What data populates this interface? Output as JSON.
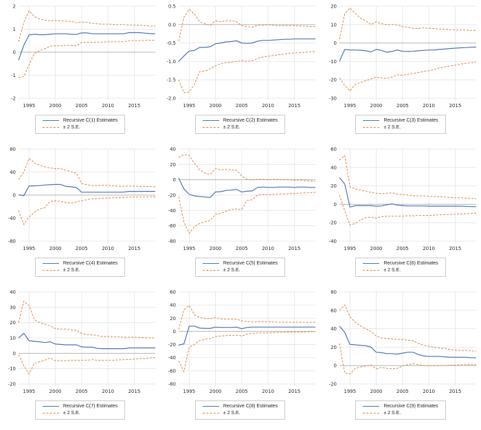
{
  "colors": {
    "estimate": "#4a72b8",
    "band": "#e4803c",
    "grid": "#e3e3e3",
    "zero_line": "#b5b5b5",
    "tick_text": "#2b2b2b",
    "legend_border": "#c9c9c9",
    "background": "#ffffff"
  },
  "x_axis": {
    "min": 1993,
    "max": 2019,
    "ticks": [
      "1995",
      "2000",
      "2005",
      "2010",
      "2015"
    ],
    "years": [
      1993,
      1994,
      1995,
      1996,
      1997,
      1998,
      1999,
      2000,
      2001,
      2002,
      2003,
      2004,
      2005,
      2006,
      2007,
      2008,
      2009,
      2010,
      2011,
      2012,
      2013,
      2014,
      2015,
      2016,
      2017,
      2018,
      2019
    ]
  },
  "chart_data": [
    {
      "type": "line",
      "legend_estimate": "Recursive C(1) Estimates",
      "legend_band": "± 2 S.E.",
      "ylim": [
        -2,
        2
      ],
      "yticks": [
        2,
        1,
        0,
        -1,
        -2
      ],
      "ytick_labels": [
        "2",
        "1",
        "0",
        "-1",
        "-2"
      ],
      "series": [
        {
          "name": "estimate",
          "values": [
            -0.35,
            0.3,
            0.75,
            0.78,
            0.76,
            0.76,
            0.78,
            0.8,
            0.8,
            0.8,
            0.78,
            0.77,
            0.84,
            0.84,
            0.8,
            0.8,
            0.8,
            0.8,
            0.8,
            0.8,
            0.8,
            0.85,
            0.85,
            0.85,
            0.83,
            0.81,
            0.8
          ]
        },
        {
          "name": "upper_2se",
          "values": [
            0.45,
            1.3,
            1.8,
            1.55,
            1.45,
            1.4,
            1.36,
            1.38,
            1.36,
            1.35,
            1.33,
            1.28,
            1.31,
            1.3,
            1.25,
            1.23,
            1.22,
            1.22,
            1.21,
            1.2,
            1.2,
            1.19,
            1.18,
            1.18,
            1.16,
            1.14,
            1.13
          ]
        },
        {
          "name": "lower_2se",
          "values": [
            -1.1,
            -1.05,
            -0.55,
            -0.05,
            0.06,
            0.15,
            0.26,
            0.28,
            0.28,
            0.3,
            0.29,
            0.28,
            0.42,
            0.43,
            0.43,
            0.44,
            0.44,
            0.45,
            0.45,
            0.45,
            0.46,
            0.5,
            0.5,
            0.51,
            0.51,
            0.52,
            0.52
          ]
        }
      ]
    },
    {
      "type": "line",
      "legend_estimate": "Recursive C(2) Estimates",
      "legend_band": "± 2 S.E.",
      "ylim": [
        -2.0,
        0.5
      ],
      "yticks": [
        0.5,
        0.0,
        -0.5,
        -1.0,
        -1.5,
        -2.0
      ],
      "ytick_labels": [
        "0.5",
        "0.0",
        "-0.5",
        "-1.0",
        "-1.5",
        "-2.0"
      ],
      "series": [
        {
          "name": "estimate",
          "values": [
            -1.0,
            -0.85,
            -0.72,
            -0.7,
            -0.62,
            -0.62,
            -0.6,
            -0.52,
            -0.5,
            -0.47,
            -0.46,
            -0.44,
            -0.5,
            -0.51,
            -0.5,
            -0.45,
            -0.43,
            -0.43,
            -0.42,
            -0.41,
            -0.4,
            -0.4,
            -0.39,
            -0.39,
            -0.39,
            -0.39,
            -0.39
          ]
        },
        {
          "name": "upper_2se",
          "values": [
            -0.45,
            0.2,
            0.42,
            0.28,
            0.08,
            0.02,
            -0.02,
            0.1,
            0.08,
            0.1,
            0.1,
            0.08,
            -0.03,
            -0.05,
            -0.07,
            -0.02,
            -0.02,
            0.0,
            -0.02,
            -0.03,
            -0.03,
            -0.03,
            -0.03,
            -0.04,
            -0.04,
            -0.05,
            -0.05
          ]
        },
        {
          "name": "lower_2se",
          "values": [
            -1.5,
            -1.85,
            -1.83,
            -1.62,
            -1.28,
            -1.26,
            -1.2,
            -1.12,
            -1.06,
            -1.03,
            -1.02,
            -1.0,
            -0.98,
            -1.0,
            -0.98,
            -0.92,
            -0.88,
            -0.86,
            -0.84,
            -0.82,
            -0.8,
            -0.78,
            -0.77,
            -0.76,
            -0.75,
            -0.74,
            -0.74
          ]
        }
      ]
    },
    {
      "type": "line",
      "legend_estimate": "Recursive C(3) Estimates",
      "legend_band": "± 2 S.E.",
      "ylim": [
        -30,
        20
      ],
      "yticks": [
        20,
        10,
        0,
        -10,
        -20,
        -30
      ],
      "ytick_labels": [
        "20",
        "10",
        "0",
        "-10",
        "-20",
        "-30"
      ],
      "series": [
        {
          "name": "estimate",
          "values": [
            -10.0,
            -3.5,
            -3.8,
            -3.8,
            -3.9,
            -4.2,
            -4.8,
            -3.5,
            -4.0,
            -5.0,
            -4.6,
            -3.8,
            -4.5,
            -4.6,
            -4.5,
            -4.2,
            -4.0,
            -3.8,
            -3.8,
            -3.5,
            -3.3,
            -3.0,
            -2.8,
            -2.6,
            -2.5,
            -2.3,
            -2.2
          ]
        },
        {
          "name": "upper_2se",
          "values": [
            2.0,
            16.0,
            19.0,
            16.0,
            13.5,
            12.0,
            10.0,
            11.5,
            10.5,
            10.0,
            10.0,
            9.8,
            9.0,
            8.6,
            8.0,
            7.8,
            8.2,
            8.0,
            7.8,
            7.6,
            7.5,
            7.3,
            7.2,
            7.0,
            7.0,
            6.8,
            6.8
          ]
        },
        {
          "name": "lower_2se",
          "values": [
            -19.0,
            -23.0,
            -26.0,
            -22.5,
            -21.5,
            -20.5,
            -19.5,
            -18.5,
            -19.0,
            -19.2,
            -18.5,
            -17.3,
            -17.5,
            -17.0,
            -16.5,
            -16.0,
            -15.5,
            -15.0,
            -14.5,
            -13.5,
            -13.0,
            -12.5,
            -12.0,
            -11.5,
            -11.0,
            -10.8,
            -10.5
          ]
        }
      ]
    },
    {
      "type": "line",
      "legend_estimate": "Recursive C(4) Estimates",
      "legend_band": "± 2 S.E.",
      "ylim": [
        -80,
        80
      ],
      "yticks": [
        80,
        40,
        0,
        -40,
        -80
      ],
      "ytick_labels": [
        "80",
        "40",
        "0",
        "-40",
        "-80"
      ],
      "series": [
        {
          "name": "estimate",
          "values": [
            0.5,
            -1.0,
            16.0,
            16.0,
            16.5,
            17.5,
            18.0,
            18.5,
            18.5,
            15.0,
            14.5,
            13.0,
            5.0,
            5.0,
            5.0,
            5.0,
            5.0,
            5.0,
            5.0,
            5.0,
            5.2,
            6.5,
            6.5,
            6.5,
            6.5,
            6.5,
            6.5
          ]
        },
        {
          "name": "upper_2se",
          "values": [
            27.0,
            40.0,
            64.0,
            56.0,
            52.0,
            49.0,
            47.0,
            46.0,
            46.0,
            43.0,
            41.0,
            38.0,
            20.0,
            18.0,
            16.5,
            16.5,
            17.0,
            17.0,
            16.0,
            15.5,
            15.5,
            15.5,
            15.5,
            15.0,
            15.0,
            14.8,
            14.5
          ]
        },
        {
          "name": "lower_2se",
          "values": [
            -27.0,
            -51.0,
            -38.0,
            -30.0,
            -24.0,
            -22.0,
            -11.0,
            -10.0,
            -11.0,
            -13.0,
            -14.0,
            -12.0,
            -10.0,
            -8.0,
            -6.5,
            -6.0,
            -5.5,
            -5.0,
            -4.5,
            -4.5,
            -4.0,
            -3.5,
            -3.5,
            -3.5,
            -3.5,
            -3.2,
            -3.0
          ]
        }
      ]
    },
    {
      "type": "line",
      "legend_estimate": "Recursive C(5) Estimates",
      "legend_band": "± 2 S.E.",
      "ylim": [
        -80,
        40
      ],
      "yticks": [
        40,
        20,
        0,
        -20,
        -40,
        -60,
        -80
      ],
      "ytick_labels": [
        "40",
        "20",
        "0",
        "-20",
        "-40",
        "-60",
        "-80"
      ],
      "series": [
        {
          "name": "estimate",
          "values": [
            2.0,
            -12.0,
            -19.0,
            -21.0,
            -22.0,
            -22.5,
            -23.0,
            -16.0,
            -15.5,
            -14.0,
            -13.5,
            -12.5,
            -16.0,
            -15.0,
            -14.5,
            -10.0,
            -9.5,
            -10.0,
            -10.0,
            -9.5,
            -9.5,
            -9.5,
            -10.0,
            -9.5,
            -9.5,
            -10.0,
            -10.0
          ]
        },
        {
          "name": "upper_2se",
          "values": [
            29.0,
            32.5,
            32.0,
            21.0,
            13.0,
            8.5,
            7.0,
            14.5,
            13.0,
            13.5,
            13.0,
            12.5,
            5.0,
            0.5,
            0.0,
            0.5,
            0.5,
            0.0,
            0.5,
            0.5,
            0.0,
            0.0,
            -0.5,
            -0.5,
            -1.0,
            -1.5,
            -2.0
          ]
        },
        {
          "name": "lower_2se",
          "values": [
            -22.0,
            -55.0,
            -70.0,
            -61.0,
            -57.0,
            -55.0,
            -53.0,
            -45.0,
            -44.0,
            -41.0,
            -38.5,
            -38.0,
            -39.0,
            -27.0,
            -26.0,
            -20.0,
            -19.5,
            -19.5,
            -19.0,
            -18.5,
            -18.5,
            -18.0,
            -18.0,
            -17.5,
            -17.0,
            -17.0,
            -16.5
          ]
        }
      ]
    },
    {
      "type": "line",
      "legend_estimate": "Recursive C(6) Estimates",
      "legend_band": "± 2 S.E.",
      "ylim": [
        -40,
        60
      ],
      "yticks": [
        60,
        40,
        20,
        0,
        -20,
        -40
      ],
      "ytick_labels": [
        "60",
        "40",
        "20",
        "0",
        "-20",
        "-40"
      ],
      "series": [
        {
          "name": "estimate",
          "values": [
            29.0,
            22.0,
            -3.0,
            -1.5,
            -1.5,
            -1.5,
            -1.5,
            -2.0,
            -1.8,
            -0.5,
            0.5,
            -1.0,
            -1.5,
            -1.8,
            -1.8,
            -1.8,
            -1.8,
            -2.0,
            -2.0,
            -2.0,
            -2.0,
            -2.0,
            -2.0,
            -2.0,
            -2.2,
            -2.5,
            -2.5
          ]
        },
        {
          "name": "upper_2se",
          "values": [
            48.0,
            53.0,
            19.0,
            16.5,
            15.5,
            14.0,
            13.0,
            12.0,
            11.5,
            12.0,
            12.5,
            11.0,
            10.5,
            10.0,
            9.5,
            9.2,
            9.0,
            8.8,
            8.5,
            8.2,
            8.0,
            7.5,
            7.2,
            7.0,
            6.8,
            6.5,
            6.0
          ]
        },
        {
          "name": "lower_2se",
          "values": [
            10.0,
            -7.0,
            -22.5,
            -21.0,
            -17.0,
            -14.5,
            -14.0,
            -15.0,
            -13.5,
            -13.0,
            -13.0,
            -13.0,
            -13.0,
            -12.5,
            -12.5,
            -12.2,
            -12.0,
            -12.0,
            -11.8,
            -11.5,
            -11.3,
            -11.0,
            -10.8,
            -10.5,
            -10.3,
            -10.0,
            -9.5
          ]
        }
      ]
    },
    {
      "type": "line",
      "legend_estimate": "Recursive C(7) Estimates",
      "legend_band": "± 2 S.E.",
      "ylim": [
        -20,
        40
      ],
      "yticks": [
        40,
        30,
        20,
        10,
        0,
        -10,
        -20
      ],
      "ytick_labels": [
        "40",
        "30",
        "20",
        "10",
        "0",
        "-10",
        "-20"
      ],
      "series": [
        {
          "name": "estimate",
          "values": [
            10.0,
            13.0,
            8.2,
            7.8,
            7.5,
            7.0,
            7.5,
            6.0,
            5.8,
            5.5,
            5.5,
            5.5,
            4.2,
            4.0,
            4.0,
            3.2,
            3.0,
            3.0,
            3.0,
            3.0,
            3.0,
            3.5,
            3.5,
            3.5,
            3.5,
            3.5,
            3.5
          ]
        },
        {
          "name": "upper_2se",
          "values": [
            20.0,
            34.0,
            31.0,
            22.0,
            20.0,
            19.0,
            18.0,
            16.0,
            15.8,
            15.8,
            15.2,
            15.0,
            12.8,
            12.3,
            12.0,
            11.5,
            11.0,
            11.0,
            10.8,
            10.8,
            10.5,
            10.5,
            10.5,
            10.3,
            10.2,
            10.0,
            10.0
          ]
        },
        {
          "name": "lower_2se",
          "values": [
            -1.0,
            -8.0,
            -13.5,
            -6.5,
            -5.5,
            -4.5,
            -3.0,
            -4.8,
            -4.8,
            -4.8,
            -4.5,
            -4.5,
            -4.5,
            -4.5,
            -4.2,
            -4.5,
            -4.5,
            -4.5,
            -4.5,
            -4.3,
            -4.2,
            -4.0,
            -3.8,
            -3.5,
            -3.3,
            -3.0,
            -2.8
          ]
        }
      ]
    },
    {
      "type": "line",
      "legend_estimate": "Recursive C(8) Estimates",
      "legend_band": "± 2 S.E.",
      "ylim": [
        -80,
        60
      ],
      "yticks": [
        60,
        40,
        20,
        0,
        -20,
        -40,
        -60,
        -80
      ],
      "ytick_labels": [
        "60",
        "40",
        "20",
        "0",
        "-20",
        "-40",
        "-60",
        "-80"
      ],
      "series": [
        {
          "name": "estimate",
          "values": [
            -21.0,
            -19.0,
            8.0,
            8.0,
            5.0,
            4.5,
            4.5,
            6.5,
            6.0,
            6.0,
            6.0,
            6.5,
            4.0,
            6.0,
            6.5,
            6.5,
            6.5,
            6.5,
            6.5,
            6.5,
            6.5,
            6.5,
            6.5,
            6.5,
            6.5,
            6.5,
            6.5
          ]
        },
        {
          "name": "upper_2se",
          "values": [
            3.0,
            33.0,
            39.5,
            25.0,
            21.0,
            20.0,
            19.5,
            21.0,
            19.0,
            18.5,
            18.5,
            18.5,
            16.0,
            15.0,
            14.5,
            14.5,
            14.5,
            14.5,
            14.3,
            14.0,
            14.0,
            14.0,
            14.0,
            13.8,
            13.8,
            13.8,
            13.8
          ]
        },
        {
          "name": "lower_2se",
          "values": [
            -45.0,
            -61.0,
            -24.0,
            -20.0,
            -14.0,
            -12.0,
            -11.0,
            -8.0,
            -7.0,
            -6.5,
            -6.0,
            -6.0,
            -7.0,
            -4.0,
            -3.0,
            -2.5,
            -2.5,
            -2.5,
            -2.0,
            -1.5,
            -1.5,
            -1.0,
            -1.0,
            -1.0,
            -0.8,
            -0.5,
            -0.5
          ]
        }
      ]
    },
    {
      "type": "line",
      "legend_estimate": "Recursive C(9) Estimates",
      "legend_band": "± 2 S.E.",
      "ylim": [
        -20,
        80
      ],
      "yticks": [
        80,
        60,
        40,
        20,
        0,
        -20
      ],
      "ytick_labels": [
        "80",
        "60",
        "40",
        "20",
        "0",
        "-20"
      ],
      "series": [
        {
          "name": "estimate",
          "values": [
            43.0,
            36.0,
            23.0,
            22.5,
            22.0,
            21.5,
            20.0,
            14.5,
            14.0,
            13.0,
            13.0,
            12.5,
            13.5,
            14.5,
            14.5,
            12.0,
            10.5,
            10.0,
            10.0,
            10.0,
            9.5,
            9.0,
            9.0,
            9.0,
            9.0,
            8.5,
            8.5
          ]
        },
        {
          "name": "upper_2se",
          "values": [
            60.0,
            66.0,
            53.0,
            47.0,
            43.0,
            40.0,
            37.0,
            32.0,
            30.0,
            29.5,
            29.0,
            28.5,
            28.5,
            27.5,
            27.0,
            24.0,
            22.0,
            21.0,
            20.0,
            19.0,
            18.5,
            17.5,
            17.0,
            16.5,
            16.5,
            16.0,
            15.5
          ]
        },
        {
          "name": "lower_2se",
          "values": [
            24.0,
            -8.0,
            -9.0,
            -3.0,
            -1.5,
            -0.5,
            0.5,
            -3.5,
            -2.0,
            -3.0,
            -3.5,
            -3.0,
            -0.5,
            1.0,
            2.0,
            1.0,
            0.0,
            0.0,
            0.0,
            0.0,
            0.0,
            0.5,
            0.5,
            1.0,
            1.0,
            1.0,
            1.0
          ]
        }
      ]
    }
  ]
}
